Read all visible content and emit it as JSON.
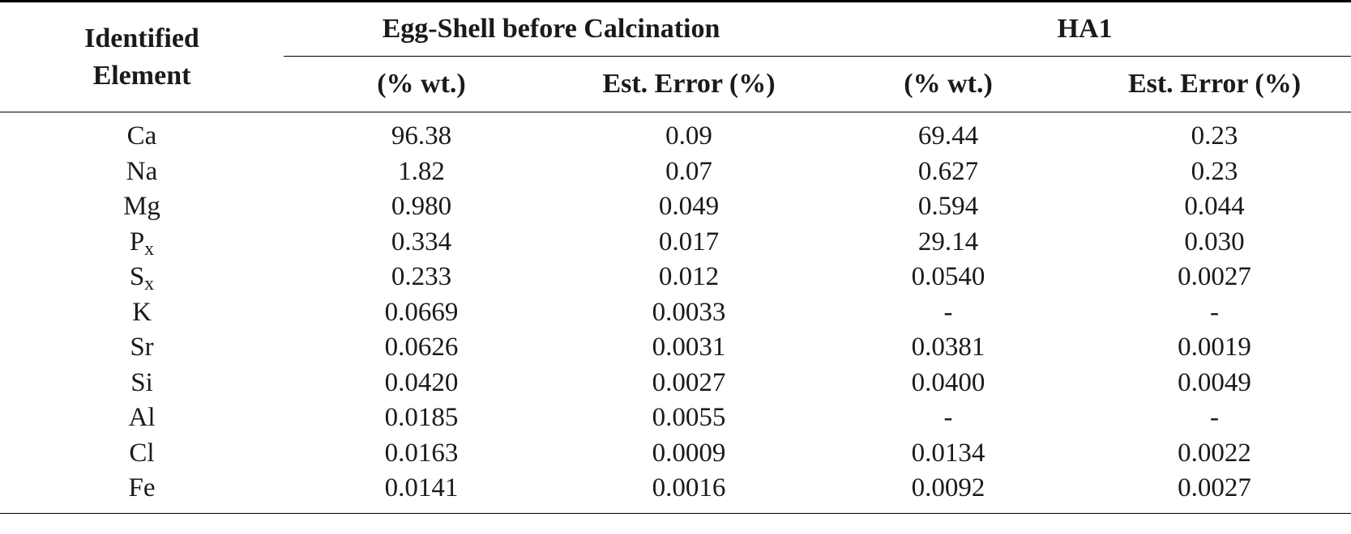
{
  "header": {
    "row_header_line1": "Identified",
    "row_header_line2": "Element",
    "group1": "Egg-Shell before Calcination",
    "group2": "HA1",
    "subheaders": [
      "(% wt.)",
      "Est. Error (%)",
      "(% wt.)",
      "Est. Error (%)"
    ]
  },
  "rows": [
    {
      "element": "Ca",
      "sub": "",
      "v1": "96.38",
      "e1": "0.09",
      "v2": "69.44",
      "e2": "0.23"
    },
    {
      "element": "Na",
      "sub": "",
      "v1": "1.82",
      "e1": "0.07",
      "v2": "0.627",
      "e2": "0.23"
    },
    {
      "element": "Mg",
      "sub": "",
      "v1": "0.980",
      "e1": "0.049",
      "v2": "0.594",
      "e2": "0.044"
    },
    {
      "element": "P",
      "sub": "x",
      "v1": "0.334",
      "e1": "0.017",
      "v2": "29.14",
      "e2": "0.030"
    },
    {
      "element": "S",
      "sub": "x",
      "v1": "0.233",
      "e1": "0.012",
      "v2": "0.0540",
      "e2": "0.0027"
    },
    {
      "element": "K",
      "sub": "",
      "v1": "0.0669",
      "e1": "0.0033",
      "v2": "-",
      "e2": "-"
    },
    {
      "element": "Sr",
      "sub": "",
      "v1": "0.0626",
      "e1": "0.0031",
      "v2": "0.0381",
      "e2": "0.0019"
    },
    {
      "element": "Si",
      "sub": "",
      "v1": "0.0420",
      "e1": "0.0027",
      "v2": "0.0400",
      "e2": "0.0049"
    },
    {
      "element": "Al",
      "sub": "",
      "v1": "0.0185",
      "e1": "0.0055",
      "v2": "-",
      "e2": "-"
    },
    {
      "element": "Cl",
      "sub": "",
      "v1": "0.0163",
      "e1": "0.0009",
      "v2": "0.0134",
      "e2": "0.0022"
    },
    {
      "element": "Fe",
      "sub": "",
      "v1": "0.0141",
      "e1": "0.0016",
      "v2": "0.0092",
      "e2": "0.0027"
    }
  ]
}
